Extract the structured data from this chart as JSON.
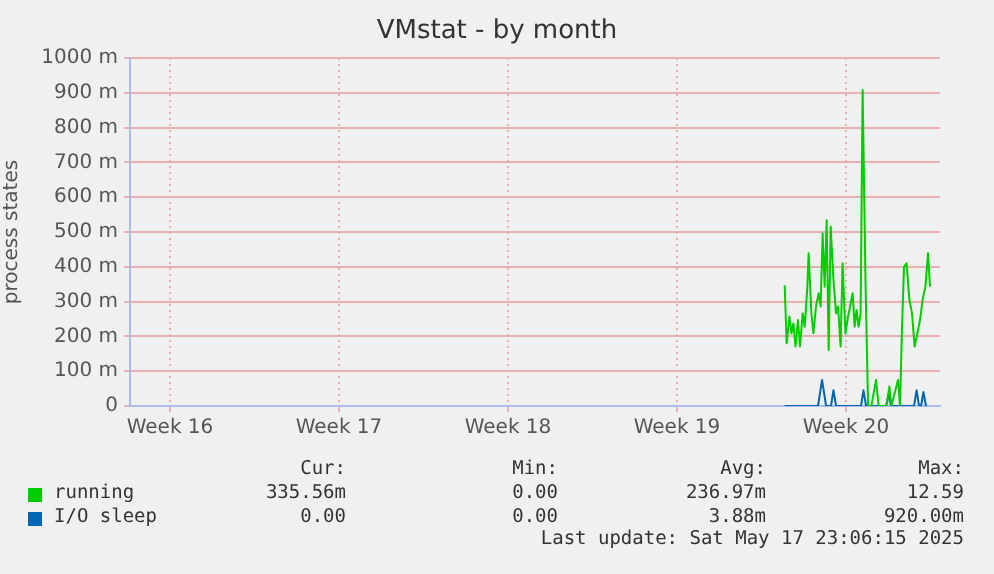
{
  "chart_data": {
    "type": "line",
    "title": "VMstat - by month",
    "ylabel": "process states",
    "xlim": [
      "2025-04-14T17:45",
      "2025-05-18T06:55"
    ],
    "xticks": [
      {
        "value": "2025-04-16T09:30",
        "label": "Week 16"
      },
      {
        "value": "2025-04-23T09:30",
        "label": "Week 17"
      },
      {
        "value": "2025-04-30T09:30",
        "label": "Week 18"
      },
      {
        "value": "2025-05-07T09:30",
        "label": "Week 19"
      },
      {
        "value": "2025-05-14T09:30",
        "label": "Week 20"
      }
    ],
    "ylim": [
      0,
      1000
    ],
    "yticks": [
      {
        "value": 0,
        "label": "0"
      },
      {
        "value": 100,
        "label": "100 m"
      },
      {
        "value": 200,
        "label": "200 m"
      },
      {
        "value": 300,
        "label": "300 m"
      },
      {
        "value": 400,
        "label": "400 m"
      },
      {
        "value": 500,
        "label": "500 m"
      },
      {
        "value": 600,
        "label": "600 m"
      },
      {
        "value": 700,
        "label": "700 m"
      },
      {
        "value": 800,
        "label": "800 m"
      },
      {
        "value": 900,
        "label": "900 m"
      },
      {
        "value": 1000,
        "label": "1000 m"
      }
    ],
    "grid": true,
    "legend": "bottom",
    "marker": "none",
    "line_style": "solid",
    "series": [
      {
        "name": "running",
        "color": "#00cc00",
        "x": [
          "2025-05-11T20:30",
          "2025-05-11T22:30",
          "2025-05-12T01:15",
          "2025-05-12T03:15",
          "2025-05-12T05:15",
          "2025-05-12T07:15",
          "2025-05-12T09:45",
          "2025-05-12T11:45",
          "2025-05-12T14:25",
          "2025-05-12T16:25",
          "2025-05-12T19:05",
          "2025-05-12T20:20",
          "2025-05-12T23:05",
          "2025-05-13T01:05",
          "2025-05-13T03:40",
          "2025-05-13T06:15",
          "2025-05-13T08:15",
          "2025-05-13T10:15",
          "2025-05-13T12:15",
          "2025-05-13T14:15",
          "2025-05-13T16:15",
          "2025-05-13T18:15",
          "2025-05-13T21:00",
          "2025-05-13T23:35",
          "2025-05-14T01:35",
          "2025-05-14T04:05",
          "2025-05-14T06:05",
          "2025-05-14T08:55",
          "2025-05-14T10:55",
          "2025-05-14T13:30",
          "2025-05-14T16:05",
          "2025-05-14T18:05",
          "2025-05-14T20:00",
          "2025-05-14T22:00",
          "2025-05-15T00:00",
          "2025-05-15T02:00",
          "2025-05-15T04:50",
          "2025-05-15T07:25",
          "2025-05-15T10:45",
          "2025-05-15T15:20",
          "2025-05-15T17:55",
          "2025-05-16T01:55",
          "2025-05-16T04:35",
          "2025-05-16T06:35",
          "2025-05-16T13:10",
          "2025-05-16T15:10",
          "2025-05-16T17:10",
          "2025-05-16T19:10",
          "2025-05-16T21:40",
          "2025-05-17T00:30",
          "2025-05-17T03:05",
          "2025-05-17T05:40",
          "2025-05-17T08:30",
          "2025-05-17T11:05",
          "2025-05-17T13:35",
          "2025-05-17T16:25",
          "2025-05-17T19:00",
          "2025-05-17T21:00"
        ],
        "values": [
          347,
          180,
          257,
          209,
          237,
          171,
          247,
          171,
          266,
          228,
          343,
          439,
          266,
          209,
          286,
          324,
          286,
          496,
          343,
          534,
          161,
          515,
          362,
          266,
          286,
          171,
          410,
          209,
          247,
          286,
          324,
          228,
          276,
          228,
          266,
          908,
          362,
          0,
          0,
          75,
          0,
          0,
          56,
          0,
          75,
          0,
          228,
          400,
          410,
          305,
          266,
          171,
          209,
          247,
          305,
          343,
          439,
          343
        ]
      },
      {
        "name": "I/O sleep",
        "color": "#0066b3",
        "x": [
          "2025-05-11T20:30",
          "2025-05-13T05:40",
          "2025-05-13T09:40",
          "2025-05-13T13:40",
          "2025-05-13T18:35",
          "2025-05-13T21:00",
          "2025-05-13T23:35",
          "2025-05-15T00:25",
          "2025-05-15T02:50",
          "2025-05-15T05:25",
          "2025-05-16T01:20",
          "2025-05-16T03:55",
          "2025-05-16T06:15",
          "2025-05-17T05:05",
          "2025-05-17T07:40",
          "2025-05-17T10:05",
          "2025-05-17T12:05",
          "2025-05-17T14:25",
          "2025-05-17T17:00"
        ],
        "values": [
          0,
          0,
          75,
          0,
          0,
          45,
          0,
          0,
          45,
          0,
          0,
          35,
          0,
          0,
          45,
          0,
          0,
          40,
          0
        ]
      }
    ],
    "annotations": [
      "Cur:",
      "Min:",
      "Avg:",
      "Max:",
      "335.56m",
      "0.00",
      "236.97m",
      "12.59",
      "0.00",
      "0.00",
      "3.88m",
      "920.00m",
      "Last update: Sat May 17 23:06:15 2025"
    ]
  }
}
